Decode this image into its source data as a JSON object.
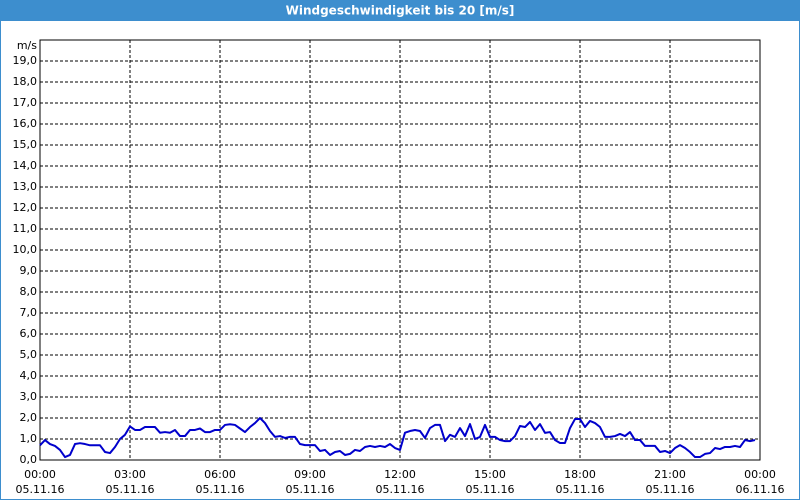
{
  "chart_data": {
    "type": "line",
    "title": "Windgeschwindigkeit bis 20 [m/s]",
    "y_label": "m/s",
    "x": [
      0,
      10,
      20,
      30,
      40,
      50,
      60,
      70,
      80,
      90,
      100,
      110,
      120,
      130,
      140,
      150,
      160,
      170,
      180,
      190,
      200,
      210,
      220,
      230,
      240,
      250,
      260,
      270,
      280,
      290,
      300,
      310,
      320,
      330,
      340,
      350,
      360,
      370,
      380,
      390,
      400,
      410,
      420,
      430,
      440,
      450,
      460,
      470,
      480,
      490,
      500,
      510,
      520,
      530,
      540,
      550,
      560,
      570,
      580,
      590,
      600,
      610,
      620,
      630,
      640,
      650,
      660,
      670,
      680,
      690,
      700,
      710,
      720,
      730,
      740,
      750,
      760,
      770,
      780,
      790,
      800,
      810,
      820,
      830,
      840,
      850,
      860,
      870,
      880,
      890,
      900,
      910,
      920,
      930,
      940,
      950,
      960,
      970,
      980,
      990,
      1000,
      1010,
      1020,
      1030,
      1040,
      1050,
      1060,
      1070,
      1080,
      1090,
      1100,
      1110,
      1120,
      1130,
      1140,
      1150,
      1160,
      1170,
      1180,
      1190,
      1200,
      1210,
      1220,
      1230,
      1240,
      1250,
      1260,
      1270,
      1280,
      1290,
      1300,
      1310,
      1320,
      1330,
      1340,
      1350,
      1360,
      1370,
      1380,
      1390,
      1400,
      1410,
      1420,
      1430
    ],
    "series": [
      {
        "color": "#0000cc",
        "values": [
          0.7,
          0.95,
          0.76,
          0.67,
          0.48,
          0.14,
          0.24,
          0.76,
          0.8,
          0.76,
          0.7,
          0.7,
          0.7,
          0.38,
          0.33,
          0.62,
          1.0,
          1.2,
          1.6,
          1.43,
          1.43,
          1.57,
          1.57,
          1.57,
          1.3,
          1.33,
          1.3,
          1.43,
          1.14,
          1.14,
          1.43,
          1.43,
          1.5,
          1.33,
          1.33,
          1.43,
          1.43,
          1.67,
          1.7,
          1.67,
          1.5,
          1.33,
          1.57,
          1.76,
          2.0,
          1.76,
          1.38,
          1.1,
          1.14,
          1.05,
          1.1,
          1.1,
          0.76,
          0.71,
          0.71,
          0.71,
          0.43,
          0.48,
          0.24,
          0.38,
          0.43,
          0.24,
          0.29,
          0.48,
          0.43,
          0.62,
          0.67,
          0.62,
          0.67,
          0.62,
          0.76,
          0.57,
          0.48,
          1.3,
          1.38,
          1.43,
          1.38,
          1.05,
          1.52,
          1.67,
          1.67,
          0.9,
          1.2,
          1.1,
          1.52,
          1.14,
          1.71,
          1.0,
          1.1,
          1.67,
          1.1,
          1.1,
          0.95,
          0.9,
          0.9,
          1.14,
          1.62,
          1.57,
          1.81,
          1.43,
          1.71,
          1.29,
          1.33,
          0.95,
          0.81,
          0.81,
          1.52,
          1.95,
          1.95,
          1.57,
          1.86,
          1.76,
          1.57,
          1.1,
          1.1,
          1.14,
          1.24,
          1.14,
          1.33,
          0.95,
          0.95,
          0.67,
          0.67,
          0.67,
          0.38,
          0.43,
          0.33,
          0.57,
          0.71,
          0.57,
          0.38,
          0.14,
          0.14,
          0.29,
          0.33,
          0.57,
          0.52,
          0.62,
          0.62,
          0.67,
          0.62,
          0.95,
          0.9,
          0.95
        ]
      }
    ],
    "xlim": [
      0,
      1440
    ],
    "xticks": [
      {
        "value": 0,
        "label": "00:00"
      },
      {
        "value": 180,
        "label": "03:00"
      },
      {
        "value": 360,
        "label": "06:00"
      },
      {
        "value": 540,
        "label": "09:00"
      },
      {
        "value": 720,
        "label": "12:00"
      },
      {
        "value": 900,
        "label": "15:00"
      },
      {
        "value": 1080,
        "label": "18:00"
      },
      {
        "value": 1260,
        "label": "21:00"
      },
      {
        "value": 1440,
        "label": "00:00"
      }
    ],
    "xtick_dates": [
      "05.11.16",
      "05.11.16",
      "05.11.16",
      "05.11.16",
      "05.11.16",
      "05.11.16",
      "05.11.16",
      "05.11.16",
      "06.11.16"
    ],
    "ylim": [
      0,
      20
    ],
    "yticks": [
      {
        "value": 0,
        "label": "0,0"
      },
      {
        "value": 1,
        "label": "1,0"
      },
      {
        "value": 2,
        "label": "2,0"
      },
      {
        "value": 3,
        "label": "3,0"
      },
      {
        "value": 4,
        "label": "4,0"
      },
      {
        "value": 5,
        "label": "5,0"
      },
      {
        "value": 6,
        "label": "6,0"
      },
      {
        "value": 7,
        "label": "7,0"
      },
      {
        "value": 8,
        "label": "8,0"
      },
      {
        "value": 9,
        "label": "9,0"
      },
      {
        "value": 10,
        "label": "10,0"
      },
      {
        "value": 11,
        "label": "11,0"
      },
      {
        "value": 12,
        "label": "12,0"
      },
      {
        "value": 13,
        "label": "13,0"
      },
      {
        "value": 14,
        "label": "14,0"
      },
      {
        "value": 15,
        "label": "15,0"
      },
      {
        "value": 16,
        "label": "16,0"
      },
      {
        "value": 17,
        "label": "17,0"
      },
      {
        "value": 18,
        "label": "18,0"
      },
      {
        "value": 19,
        "label": "19,0"
      }
    ],
    "grid": true
  }
}
